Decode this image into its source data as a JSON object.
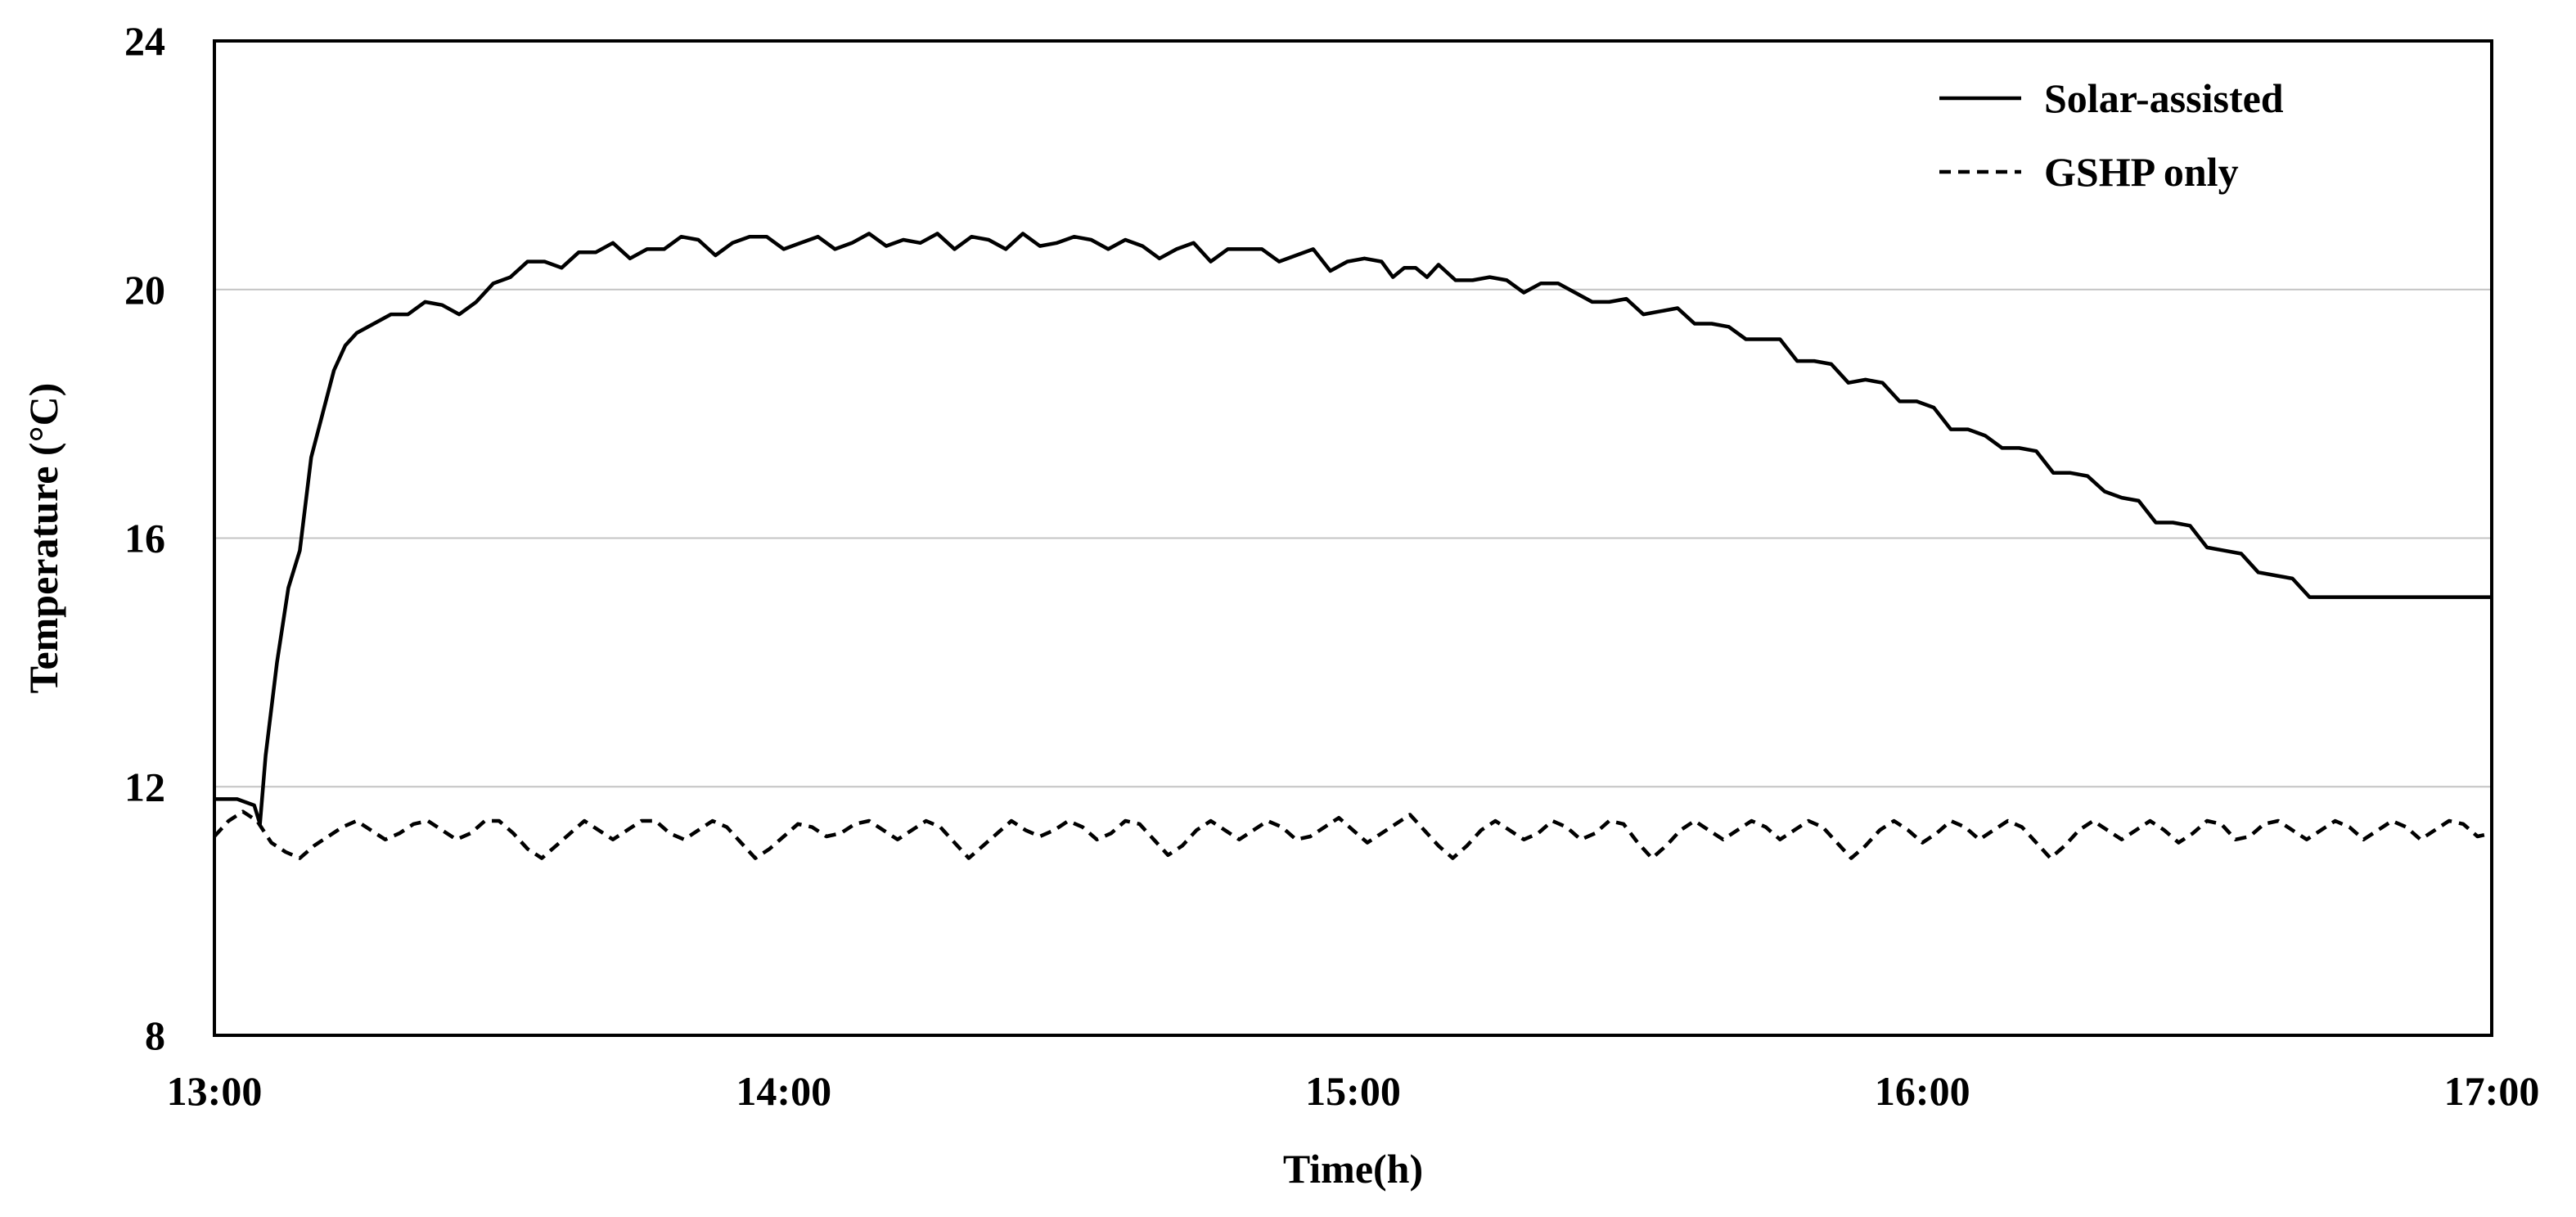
{
  "chart_data": {
    "type": "line",
    "xlabel": "Time(h)",
    "ylabel": "Temperature  (°C)",
    "xlim": [
      0,
      4
    ],
    "ylim": [
      8,
      24
    ],
    "x_tick_values": [
      0,
      1,
      2,
      3,
      4
    ],
    "x_tick_labels": [
      "13:00",
      "14:00",
      "15:00",
      "16:00",
      "17:00"
    ],
    "y_ticks": [
      8,
      12,
      16,
      20,
      24
    ],
    "grid": "horizontal",
    "legend_position": "top-right",
    "series": [
      {
        "name": "Solar-assisted",
        "line_style": "solid",
        "color": "#000000",
        "points": [
          [
            0.0,
            11.8
          ],
          [
            0.04,
            11.8
          ],
          [
            0.07,
            11.7
          ],
          [
            0.08,
            11.4
          ],
          [
            0.09,
            12.5
          ],
          [
            0.11,
            14.0
          ],
          [
            0.13,
            15.2
          ],
          [
            0.15,
            15.8
          ],
          [
            0.17,
            17.3
          ],
          [
            0.19,
            18.0
          ],
          [
            0.21,
            18.7
          ],
          [
            0.23,
            19.1
          ],
          [
            0.25,
            19.3
          ],
          [
            0.28,
            19.45
          ],
          [
            0.31,
            19.6
          ],
          [
            0.34,
            19.6
          ],
          [
            0.37,
            19.8
          ],
          [
            0.4,
            19.75
          ],
          [
            0.43,
            19.6
          ],
          [
            0.46,
            19.8
          ],
          [
            0.49,
            20.1
          ],
          [
            0.52,
            20.2
          ],
          [
            0.55,
            20.45
          ],
          [
            0.58,
            20.45
          ],
          [
            0.61,
            20.35
          ],
          [
            0.64,
            20.6
          ],
          [
            0.67,
            20.6
          ],
          [
            0.7,
            20.75
          ],
          [
            0.73,
            20.5
          ],
          [
            0.76,
            20.65
          ],
          [
            0.79,
            20.65
          ],
          [
            0.82,
            20.85
          ],
          [
            0.85,
            20.8
          ],
          [
            0.88,
            20.55
          ],
          [
            0.91,
            20.75
          ],
          [
            0.94,
            20.85
          ],
          [
            0.97,
            20.85
          ],
          [
            1.0,
            20.65
          ],
          [
            1.03,
            20.75
          ],
          [
            1.06,
            20.85
          ],
          [
            1.09,
            20.65
          ],
          [
            1.12,
            20.75
          ],
          [
            1.15,
            20.9
          ],
          [
            1.18,
            20.7
          ],
          [
            1.21,
            20.8
          ],
          [
            1.24,
            20.75
          ],
          [
            1.27,
            20.9
          ],
          [
            1.3,
            20.65
          ],
          [
            1.33,
            20.85
          ],
          [
            1.36,
            20.8
          ],
          [
            1.39,
            20.65
          ],
          [
            1.42,
            20.9
          ],
          [
            1.45,
            20.7
          ],
          [
            1.48,
            20.75
          ],
          [
            1.51,
            20.85
          ],
          [
            1.54,
            20.8
          ],
          [
            1.57,
            20.65
          ],
          [
            1.6,
            20.8
          ],
          [
            1.63,
            20.7
          ],
          [
            1.66,
            20.5
          ],
          [
            1.69,
            20.65
          ],
          [
            1.72,
            20.75
          ],
          [
            1.75,
            20.45
          ],
          [
            1.78,
            20.65
          ],
          [
            1.81,
            20.65
          ],
          [
            1.84,
            20.65
          ],
          [
            1.87,
            20.45
          ],
          [
            1.9,
            20.55
          ],
          [
            1.93,
            20.65
          ],
          [
            1.96,
            20.3
          ],
          [
            1.99,
            20.45
          ],
          [
            2.02,
            20.5
          ],
          [
            2.05,
            20.45
          ],
          [
            2.07,
            20.2
          ],
          [
            2.09,
            20.35
          ],
          [
            2.11,
            20.35
          ],
          [
            2.13,
            20.2
          ],
          [
            2.15,
            20.4
          ],
          [
            2.18,
            20.15
          ],
          [
            2.21,
            20.15
          ],
          [
            2.24,
            20.2
          ],
          [
            2.27,
            20.15
          ],
          [
            2.3,
            19.95
          ],
          [
            2.33,
            20.1
          ],
          [
            2.36,
            20.1
          ],
          [
            2.39,
            19.95
          ],
          [
            2.42,
            19.8
          ],
          [
            2.45,
            19.8
          ],
          [
            2.48,
            19.85
          ],
          [
            2.51,
            19.6
          ],
          [
            2.54,
            19.65
          ],
          [
            2.57,
            19.7
          ],
          [
            2.6,
            19.45
          ],
          [
            2.63,
            19.45
          ],
          [
            2.66,
            19.4
          ],
          [
            2.69,
            19.2
          ],
          [
            2.72,
            19.2
          ],
          [
            2.75,
            19.2
          ],
          [
            2.78,
            18.85
          ],
          [
            2.81,
            18.85
          ],
          [
            2.84,
            18.8
          ],
          [
            2.87,
            18.5
          ],
          [
            2.9,
            18.55
          ],
          [
            2.93,
            18.5
          ],
          [
            2.96,
            18.2
          ],
          [
            2.99,
            18.2
          ],
          [
            3.02,
            18.1
          ],
          [
            3.05,
            17.75
          ],
          [
            3.08,
            17.75
          ],
          [
            3.11,
            17.65
          ],
          [
            3.14,
            17.45
          ],
          [
            3.17,
            17.45
          ],
          [
            3.2,
            17.4
          ],
          [
            3.23,
            17.05
          ],
          [
            3.26,
            17.05
          ],
          [
            3.29,
            17.0
          ],
          [
            3.32,
            16.75
          ],
          [
            3.35,
            16.65
          ],
          [
            3.38,
            16.6
          ],
          [
            3.41,
            16.25
          ],
          [
            3.44,
            16.25
          ],
          [
            3.47,
            16.2
          ],
          [
            3.5,
            15.85
          ],
          [
            3.53,
            15.8
          ],
          [
            3.56,
            15.75
          ],
          [
            3.59,
            15.45
          ],
          [
            3.62,
            15.4
          ],
          [
            3.65,
            15.35
          ],
          [
            3.68,
            15.05
          ],
          [
            3.72,
            15.05
          ],
          [
            3.8,
            15.05
          ],
          [
            4.0,
            15.05
          ]
        ]
      },
      {
        "name": "GSHP only",
        "line_style": "dashed",
        "color": "#000000",
        "points": [
          [
            0.0,
            11.2
          ],
          [
            0.025,
            11.45
          ],
          [
            0.05,
            11.6
          ],
          [
            0.075,
            11.45
          ],
          [
            0.1,
            11.1
          ],
          [
            0.125,
            10.95
          ],
          [
            0.15,
            10.85
          ],
          [
            0.175,
            11.05
          ],
          [
            0.2,
            11.2
          ],
          [
            0.225,
            11.35
          ],
          [
            0.25,
            11.45
          ],
          [
            0.275,
            11.3
          ],
          [
            0.3,
            11.15
          ],
          [
            0.325,
            11.25
          ],
          [
            0.35,
            11.4
          ],
          [
            0.375,
            11.45
          ],
          [
            0.4,
            11.3
          ],
          [
            0.425,
            11.15
          ],
          [
            0.45,
            11.25
          ],
          [
            0.475,
            11.45
          ],
          [
            0.5,
            11.45
          ],
          [
            0.525,
            11.25
          ],
          [
            0.55,
            11.0
          ],
          [
            0.575,
            10.85
          ],
          [
            0.6,
            11.05
          ],
          [
            0.625,
            11.25
          ],
          [
            0.65,
            11.45
          ],
          [
            0.675,
            11.3
          ],
          [
            0.7,
            11.15
          ],
          [
            0.725,
            11.3
          ],
          [
            0.75,
            11.45
          ],
          [
            0.775,
            11.45
          ],
          [
            0.8,
            11.25
          ],
          [
            0.825,
            11.15
          ],
          [
            0.85,
            11.3
          ],
          [
            0.875,
            11.45
          ],
          [
            0.9,
            11.35
          ],
          [
            0.925,
            11.1
          ],
          [
            0.95,
            10.85
          ],
          [
            0.975,
            11.0
          ],
          [
            1.0,
            11.2
          ],
          [
            1.025,
            11.4
          ],
          [
            1.05,
            11.35
          ],
          [
            1.075,
            11.2
          ],
          [
            1.1,
            11.25
          ],
          [
            1.125,
            11.4
          ],
          [
            1.15,
            11.45
          ],
          [
            1.175,
            11.3
          ],
          [
            1.2,
            11.15
          ],
          [
            1.225,
            11.3
          ],
          [
            1.25,
            11.45
          ],
          [
            1.275,
            11.35
          ],
          [
            1.3,
            11.1
          ],
          [
            1.325,
            10.85
          ],
          [
            1.35,
            11.05
          ],
          [
            1.375,
            11.25
          ],
          [
            1.4,
            11.45
          ],
          [
            1.425,
            11.3
          ],
          [
            1.45,
            11.2
          ],
          [
            1.475,
            11.3
          ],
          [
            1.5,
            11.45
          ],
          [
            1.525,
            11.35
          ],
          [
            1.55,
            11.15
          ],
          [
            1.575,
            11.25
          ],
          [
            1.6,
            11.45
          ],
          [
            1.625,
            11.4
          ],
          [
            1.65,
            11.15
          ],
          [
            1.675,
            10.9
          ],
          [
            1.7,
            11.05
          ],
          [
            1.725,
            11.3
          ],
          [
            1.75,
            11.45
          ],
          [
            1.775,
            11.3
          ],
          [
            1.8,
            11.15
          ],
          [
            1.825,
            11.3
          ],
          [
            1.85,
            11.45
          ],
          [
            1.875,
            11.35
          ],
          [
            1.9,
            11.15
          ],
          [
            1.925,
            11.2
          ],
          [
            1.95,
            11.35
          ],
          [
            1.975,
            11.5
          ],
          [
            2.0,
            11.3
          ],
          [
            2.025,
            11.1
          ],
          [
            2.05,
            11.25
          ],
          [
            2.075,
            11.4
          ],
          [
            2.1,
            11.55
          ],
          [
            2.125,
            11.3
          ],
          [
            2.15,
            11.05
          ],
          [
            2.175,
            10.85
          ],
          [
            2.2,
            11.05
          ],
          [
            2.225,
            11.3
          ],
          [
            2.25,
            11.45
          ],
          [
            2.275,
            11.3
          ],
          [
            2.3,
            11.15
          ],
          [
            2.325,
            11.25
          ],
          [
            2.35,
            11.45
          ],
          [
            2.375,
            11.35
          ],
          [
            2.4,
            11.15
          ],
          [
            2.425,
            11.25
          ],
          [
            2.45,
            11.45
          ],
          [
            2.475,
            11.4
          ],
          [
            2.5,
            11.1
          ],
          [
            2.525,
            10.85
          ],
          [
            2.55,
            11.05
          ],
          [
            2.575,
            11.3
          ],
          [
            2.6,
            11.45
          ],
          [
            2.625,
            11.3
          ],
          [
            2.65,
            11.15
          ],
          [
            2.675,
            11.3
          ],
          [
            2.7,
            11.45
          ],
          [
            2.725,
            11.35
          ],
          [
            2.75,
            11.15
          ],
          [
            2.775,
            11.3
          ],
          [
            2.8,
            11.45
          ],
          [
            2.825,
            11.35
          ],
          [
            2.85,
            11.1
          ],
          [
            2.875,
            10.85
          ],
          [
            2.9,
            11.05
          ],
          [
            2.925,
            11.3
          ],
          [
            2.95,
            11.45
          ],
          [
            2.975,
            11.3
          ],
          [
            3.0,
            11.1
          ],
          [
            3.025,
            11.25
          ],
          [
            3.05,
            11.45
          ],
          [
            3.075,
            11.35
          ],
          [
            3.1,
            11.15
          ],
          [
            3.125,
            11.3
          ],
          [
            3.15,
            11.45
          ],
          [
            3.175,
            11.35
          ],
          [
            3.2,
            11.1
          ],
          [
            3.225,
            10.85
          ],
          [
            3.25,
            11.05
          ],
          [
            3.275,
            11.3
          ],
          [
            3.3,
            11.45
          ],
          [
            3.325,
            11.3
          ],
          [
            3.35,
            11.15
          ],
          [
            3.375,
            11.3
          ],
          [
            3.4,
            11.45
          ],
          [
            3.425,
            11.3
          ],
          [
            3.45,
            11.1
          ],
          [
            3.475,
            11.25
          ],
          [
            3.5,
            11.45
          ],
          [
            3.525,
            11.4
          ],
          [
            3.55,
            11.15
          ],
          [
            3.575,
            11.2
          ],
          [
            3.6,
            11.4
          ],
          [
            3.625,
            11.45
          ],
          [
            3.65,
            11.3
          ],
          [
            3.675,
            11.15
          ],
          [
            3.7,
            11.3
          ],
          [
            3.725,
            11.45
          ],
          [
            3.75,
            11.35
          ],
          [
            3.775,
            11.15
          ],
          [
            3.8,
            11.3
          ],
          [
            3.825,
            11.45
          ],
          [
            3.85,
            11.35
          ],
          [
            3.875,
            11.15
          ],
          [
            3.9,
            11.3
          ],
          [
            3.925,
            11.45
          ],
          [
            3.95,
            11.4
          ],
          [
            3.975,
            11.2
          ],
          [
            4.0,
            11.25
          ]
        ]
      }
    ]
  }
}
